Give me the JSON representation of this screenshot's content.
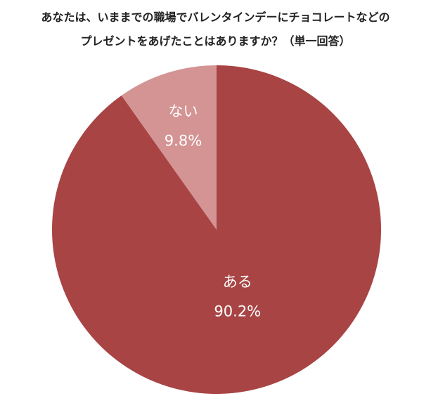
{
  "chart_data": {
    "type": "pie",
    "title_lines": [
      "あなたは、いままでの職場でバレンタインデーにチョコレートなどの",
      "プレゼントをあげたことはありますか？（単一回答）"
    ],
    "slices": [
      {
        "name": "ある",
        "value": 90.2,
        "label": "90.2%",
        "color": "#a84444"
      },
      {
        "name": "ない",
        "value": 9.8,
        "label": "9.8%",
        "color": "#d49494"
      }
    ],
    "start": "12 o'clock",
    "direction": "clockwise",
    "legend": "none"
  }
}
